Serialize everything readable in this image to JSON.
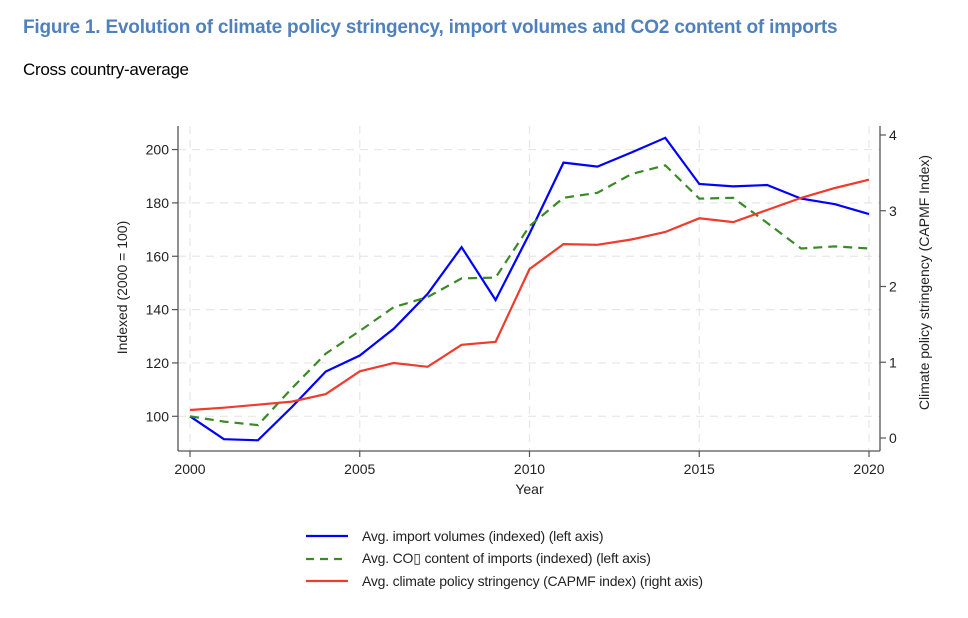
{
  "figure": {
    "title": "Figure 1. Evolution of climate policy stringency, import volumes and CO2 content of imports",
    "subtitle": "Cross country-average"
  },
  "chart_data": {
    "type": "line",
    "title": "Figure 1. Evolution of climate policy stringency, import volumes and CO2 content of imports",
    "subtitle": "Cross country-average",
    "xlabel": "Year",
    "ylabel": "Indexed (2000 = 100)",
    "y2label": "Climate policy stringency (CAPMF Index)",
    "x": [
      2000,
      2001,
      2002,
      2003,
      2004,
      2005,
      2006,
      2007,
      2008,
      2009,
      2010,
      2011,
      2012,
      2013,
      2014,
      2015,
      2016,
      2017,
      2018,
      2019,
      2020
    ],
    "xlim": [
      2000,
      2020
    ],
    "xticks": [
      2000,
      2005,
      2010,
      2015,
      2020
    ],
    "ylim": [
      87,
      210
    ],
    "yticks": [
      100,
      120,
      140,
      160,
      180,
      200
    ],
    "y2lim": [
      -0.15,
      4.05
    ],
    "y2ticks": [
      0,
      1,
      2,
      3,
      4
    ],
    "grid": true,
    "legend_position": "bottom",
    "series": [
      {
        "name": "Avg. import volumes (indexed) (left axis)",
        "axis": "left",
        "color": "#0000ff",
        "style": "solid",
        "values": [
          100,
          91.4,
          91.0,
          103.5,
          116.8,
          122.8,
          132.8,
          145.9,
          163.4,
          143.6,
          168.5,
          195.1,
          193.6,
          198.9,
          204.4,
          187.1,
          186.2,
          186.7,
          181.6,
          179.5,
          175.8
        ]
      },
      {
        "name": "Avg. CO▯ content of imports (indexed) (left axis)",
        "axis": "left",
        "color": "#3a8a26",
        "style": "dashed",
        "values": [
          100,
          98.0,
          96.7,
          110.5,
          123.5,
          132.0,
          140.9,
          144.7,
          151.7,
          152.0,
          171.3,
          181.9,
          183.8,
          190.8,
          194.1,
          181.6,
          181.9,
          172.5,
          162.9,
          163.7,
          162.9
        ]
      },
      {
        "name": "Avg. climate policy stringency (CAPMF index) (right axis)",
        "axis": "right",
        "color": "#ef3b2c",
        "style": "solid",
        "values": [
          0.37,
          0.4,
          0.44,
          0.48,
          0.58,
          0.88,
          0.99,
          0.94,
          1.23,
          1.27,
          2.23,
          2.56,
          2.55,
          2.62,
          2.72,
          2.9,
          2.85,
          3.01,
          3.17,
          3.3,
          3.41
        ]
      }
    ]
  }
}
